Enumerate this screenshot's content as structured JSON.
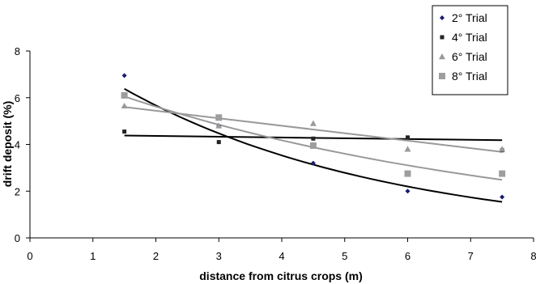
{
  "chart_data": {
    "type": "scatter",
    "title": "",
    "xlabel": "distance from citrus crops (m)",
    "ylabel": "drift deposit (%)",
    "xlim": [
      0,
      8
    ],
    "ylim": [
      0,
      8
    ],
    "xticks": [
      0,
      1,
      2,
      3,
      4,
      5,
      6,
      7,
      8
    ],
    "yticks": [
      0,
      2,
      4,
      6,
      8
    ],
    "grid": false,
    "legend_position": "top-right",
    "series": [
      {
        "name": "2° Trial",
        "marker": "diamond",
        "color": "#1a1a6e",
        "points": [
          [
            1.5,
            6.95
          ],
          [
            3.0,
            4.8
          ],
          [
            4.5,
            3.2
          ],
          [
            6.0,
            2.0
          ],
          [
            7.5,
            1.75
          ]
        ],
        "trend": {
          "type": "exponential",
          "x_start": 1.5,
          "x_end": 7.5,
          "a": 9.1,
          "b": -0.2367
        }
      },
      {
        "name": "4° Trial",
        "marker": "square-small",
        "color": "#222222",
        "points": [
          [
            1.5,
            4.55
          ],
          [
            3.0,
            4.1
          ],
          [
            4.5,
            4.25
          ],
          [
            6.0,
            4.3
          ],
          [
            7.5,
            3.75
          ]
        ],
        "trend": {
          "type": "linear",
          "x_start": 1.5,
          "x_end": 7.5,
          "y_start": 4.38,
          "y_end": 4.18
        }
      },
      {
        "name": "6° Trial",
        "marker": "triangle",
        "color": "#999999",
        "points": [
          [
            1.5,
            5.65
          ],
          [
            3.0,
            4.8
          ],
          [
            4.5,
            4.9
          ],
          [
            6.0,
            3.8
          ],
          [
            7.5,
            3.8
          ]
        ],
        "trend": {
          "type": "linear",
          "x_start": 1.5,
          "x_end": 7.5,
          "y_start": 5.6,
          "y_end": 3.68
        }
      },
      {
        "name": "8° Trial",
        "marker": "square",
        "color": "#9e9e9e",
        "points": [
          [
            1.5,
            6.1
          ],
          [
            3.0,
            5.15
          ],
          [
            4.5,
            3.95
          ],
          [
            6.0,
            2.75
          ],
          [
            7.5,
            2.75
          ]
        ],
        "trend": {
          "type": "exponential",
          "x_start": 1.5,
          "x_end": 7.5,
          "a": 7.56,
          "b": -0.1483
        }
      }
    ]
  }
}
